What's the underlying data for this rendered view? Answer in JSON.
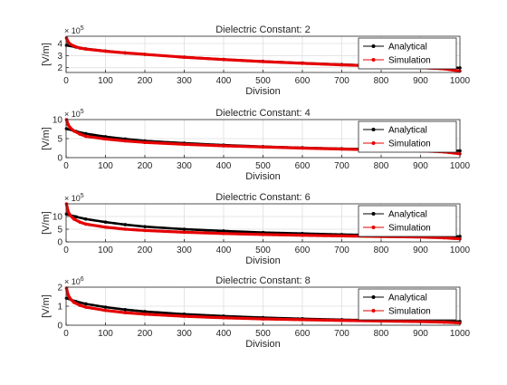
{
  "figure": {
    "background": "#ffffff"
  },
  "chart_data": [
    {
      "type": "line",
      "title": "Dielectric Constant: 2",
      "xlabel": "Division",
      "ylabel": "[V/m]",
      "xlim": [
        0,
        1000
      ],
      "ylim": [
        1.6,
        4.6
      ],
      "xticks": [
        0,
        100,
        200,
        300,
        400,
        500,
        600,
        700,
        800,
        900,
        1000
      ],
      "yticks": [
        2,
        3,
        4
      ],
      "ytick_labels": [
        "2",
        "3",
        "4"
      ],
      "exponent_label": "× 10",
      "exponent_power": "5",
      "grid": true,
      "legend_position": "top-right",
      "series": [
        {
          "name": "Analytical",
          "color": "#000000",
          "marker": "dot",
          "x": [
            1,
            25,
            50,
            100,
            150,
            200,
            300,
            400,
            500,
            600,
            700,
            800,
            900,
            1000
          ],
          "y": [
            3.85,
            3.7,
            3.56,
            3.38,
            3.22,
            3.1,
            2.87,
            2.68,
            2.52,
            2.38,
            2.26,
            2.15,
            2.06,
            1.98
          ]
        },
        {
          "name": "Simulation",
          "color": "#e60000",
          "marker": "dot",
          "x": [
            1,
            5,
            10,
            20,
            35,
            50,
            100,
            150,
            200,
            300,
            400,
            500,
            600,
            700,
            800,
            900,
            960,
            1000
          ],
          "y": [
            4.45,
            4.15,
            3.95,
            3.78,
            3.62,
            3.54,
            3.36,
            3.22,
            3.1,
            2.86,
            2.67,
            2.5,
            2.36,
            2.23,
            2.12,
            2.0,
            1.9,
            1.72
          ]
        }
      ]
    },
    {
      "type": "line",
      "title": "Dielectric Constant: 4",
      "xlabel": "Division",
      "ylabel": "[V/m]",
      "xlim": [
        0,
        1000
      ],
      "ylim": [
        0,
        10
      ],
      "xticks": [
        0,
        100,
        200,
        300,
        400,
        500,
        600,
        700,
        800,
        900,
        1000
      ],
      "yticks": [
        0,
        5,
        10
      ],
      "ytick_labels": [
        "0",
        "5",
        "10"
      ],
      "exponent_label": "× 10",
      "exponent_power": "5",
      "grid": true,
      "legend_position": "top-right",
      "series": [
        {
          "name": "Analytical",
          "color": "#000000",
          "marker": "dot",
          "x": [
            1,
            25,
            50,
            100,
            150,
            200,
            300,
            400,
            500,
            600,
            700,
            800,
            900,
            1000
          ],
          "y": [
            7.6,
            6.9,
            6.3,
            5.5,
            4.9,
            4.4,
            3.8,
            3.3,
            2.9,
            2.6,
            2.35,
            2.15,
            1.95,
            1.8
          ]
        },
        {
          "name": "Simulation",
          "color": "#e60000",
          "marker": "dot",
          "x": [
            1,
            5,
            10,
            20,
            35,
            50,
            100,
            150,
            200,
            300,
            400,
            500,
            600,
            700,
            800,
            900,
            960,
            1000
          ],
          "y": [
            10.0,
            8.7,
            7.9,
            7.0,
            6.2,
            5.6,
            4.9,
            4.4,
            4.0,
            3.5,
            3.1,
            2.8,
            2.5,
            2.25,
            2.0,
            1.8,
            1.5,
            1.0
          ]
        }
      ]
    },
    {
      "type": "line",
      "title": "Dielectric Constant: 6",
      "xlabel": "Division",
      "ylabel": "[V/m]",
      "xlim": [
        0,
        1000
      ],
      "ylim": [
        0,
        15
      ],
      "xticks": [
        0,
        100,
        200,
        300,
        400,
        500,
        600,
        700,
        800,
        900,
        1000
      ],
      "yticks": [
        0,
        5,
        10
      ],
      "ytick_labels": [
        "0",
        "5",
        "10"
      ],
      "exponent_label": "× 10",
      "exponent_power": "5",
      "grid": true,
      "legend_position": "top-right",
      "series": [
        {
          "name": "Analytical",
          "color": "#000000",
          "marker": "dot",
          "x": [
            1,
            25,
            50,
            100,
            150,
            200,
            300,
            400,
            500,
            600,
            700,
            800,
            900,
            1000
          ],
          "y": [
            11.0,
            9.9,
            9.0,
            7.8,
            6.8,
            6.0,
            5.0,
            4.3,
            3.7,
            3.3,
            2.9,
            2.6,
            2.35,
            2.15
          ]
        },
        {
          "name": "Simulation",
          "color": "#e60000",
          "marker": "dot",
          "x": [
            1,
            5,
            10,
            20,
            35,
            50,
            100,
            150,
            200,
            300,
            400,
            500,
            600,
            700,
            800,
            900,
            960,
            1000
          ],
          "y": [
            15.0,
            12.0,
            10.5,
            9.0,
            7.8,
            7.0,
            5.8,
            5.0,
            4.5,
            3.8,
            3.3,
            2.9,
            2.6,
            2.35,
            2.1,
            1.9,
            1.6,
            1.2
          ]
        }
      ]
    },
    {
      "type": "line",
      "title": "Dielectric Constant: 8",
      "xlabel": "Division",
      "ylabel": "[V/m]",
      "xlim": [
        0,
        1000
      ],
      "ylim": [
        0,
        2
      ],
      "xticks": [
        0,
        100,
        200,
        300,
        400,
        500,
        600,
        700,
        800,
        900,
        1000
      ],
      "yticks": [
        0,
        1,
        2
      ],
      "ytick_labels": [
        "0",
        "1",
        "2"
      ],
      "exponent_label": "× 10",
      "exponent_power": "6",
      "grid": true,
      "legend_position": "top-right",
      "series": [
        {
          "name": "Analytical",
          "color": "#000000",
          "marker": "dot",
          "x": [
            1,
            25,
            50,
            100,
            150,
            200,
            300,
            400,
            500,
            600,
            700,
            800,
            900,
            1000
          ],
          "y": [
            1.42,
            1.25,
            1.12,
            0.95,
            0.82,
            0.72,
            0.58,
            0.48,
            0.4,
            0.34,
            0.29,
            0.25,
            0.22,
            0.2
          ]
        },
        {
          "name": "Simulation",
          "color": "#e60000",
          "marker": "dot",
          "x": [
            1,
            5,
            10,
            20,
            35,
            50,
            100,
            150,
            200,
            300,
            400,
            500,
            600,
            700,
            800,
            900,
            960,
            1000
          ],
          "y": [
            1.95,
            1.6,
            1.4,
            1.2,
            1.05,
            0.95,
            0.78,
            0.66,
            0.58,
            0.47,
            0.39,
            0.33,
            0.29,
            0.25,
            0.22,
            0.19,
            0.16,
            0.12
          ]
        }
      ]
    }
  ]
}
